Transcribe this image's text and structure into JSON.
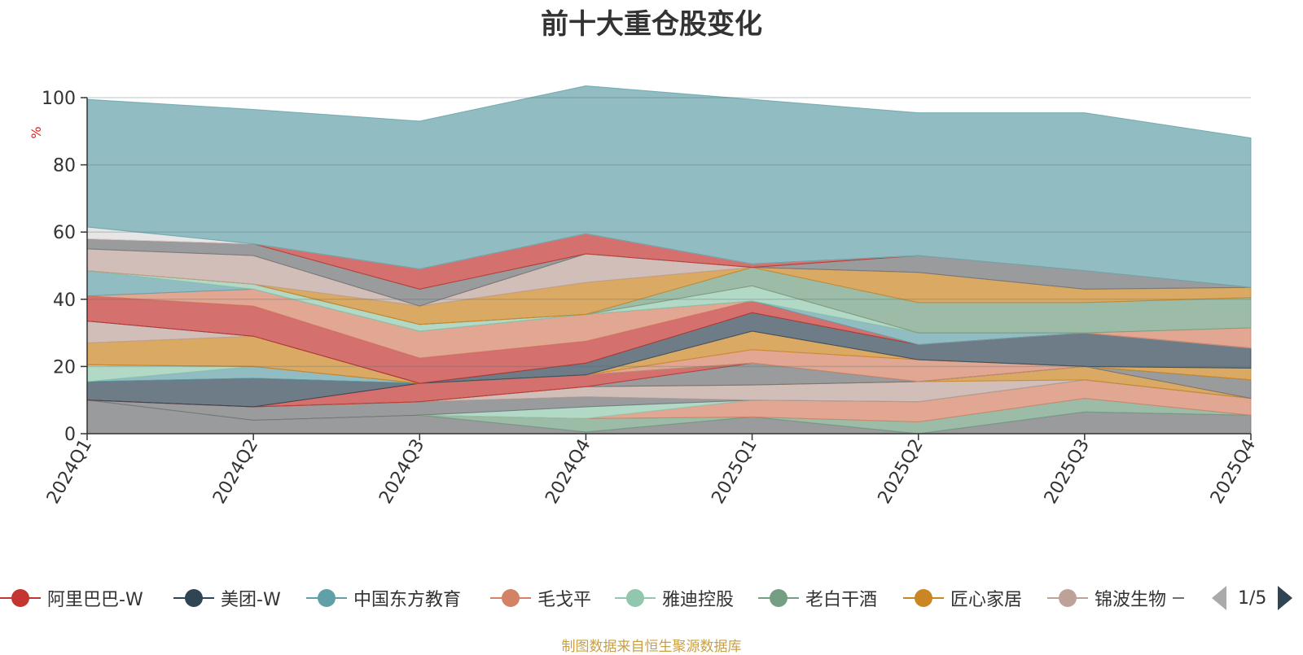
{
  "title": "前十大重仓股变化",
  "footer": "制图数据来自恒生聚源数据库",
  "pager": {
    "page": "1/5"
  },
  "legend_items": [
    {
      "label": "阿里巴巴-W",
      "color": "#c23531"
    },
    {
      "label": "美团-W",
      "color": "#2f4554"
    },
    {
      "label": "中国东方教育",
      "color": "#61a0a8"
    },
    {
      "label": "毛戈平",
      "color": "#d48265"
    },
    {
      "label": "雅迪控股",
      "color": "#91c7ae"
    },
    {
      "label": "老白干酒",
      "color": "#749f83"
    },
    {
      "label": "匠心家居",
      "color": "#ca8622"
    },
    {
      "label": "锦波生物",
      "color": "#bda29a"
    }
  ],
  "chart_data": {
    "type": "area",
    "stacked": true,
    "title": "前十大重仓股变化",
    "ylabel": "%",
    "xlabel": "",
    "ylim": [
      0,
      100
    ],
    "yticks": [
      0,
      20,
      40,
      60,
      80,
      100
    ],
    "grid": true,
    "legend_position": "bottom",
    "categories": [
      "2024Q1",
      "2024Q2",
      "2024Q3",
      "2024Q4",
      "2025Q1",
      "2025Q2",
      "2025Q3",
      "2025Q4"
    ],
    "series": [
      {
        "color": "#6e7074",
        "values": [
          10,
          4,
          5.5,
          0.5,
          5,
          0,
          6.5,
          5.5
        ]
      },
      {
        "color": "#749f83",
        "values": [
          0,
          0,
          0,
          4,
          0,
          3.5,
          4,
          0
        ]
      },
      {
        "color": "#d48265",
        "values": [
          0,
          0,
          0,
          0,
          5,
          6,
          5.5,
          5
        ]
      },
      {
        "color": "#91c7ae",
        "values": [
          0,
          0,
          0,
          3.5,
          0,
          0,
          0,
          0
        ]
      },
      {
        "color": "#6e7074",
        "values": [
          0,
          4,
          4,
          3,
          0,
          0,
          0,
          0
        ]
      },
      {
        "color": "#bda29a",
        "values": [
          0,
          0,
          0,
          3,
          4.5,
          6,
          0,
          0
        ]
      },
      {
        "color": "#ca8622",
        "values": [
          0,
          0,
          0,
          0,
          0,
          0,
          4,
          0
        ]
      },
      {
        "color": "#6e7074",
        "values": [
          0,
          0,
          0,
          0,
          6.5,
          0,
          0,
          5.5
        ]
      },
      {
        "color": "#c23531",
        "values": [
          0,
          0,
          5.5,
          3.5,
          0,
          0,
          0,
          0
        ]
      },
      {
        "color": "#2f4554",
        "values": [
          5.5,
          8.5,
          0,
          0,
          0,
          0,
          0,
          0
        ]
      },
      {
        "color": "#61a0a8",
        "values": [
          0,
          3.5,
          0,
          0,
          0,
          0,
          0,
          0
        ]
      },
      {
        "color": "#91c7ae",
        "values": [
          5,
          0,
          0,
          0,
          0,
          0,
          0,
          0
        ]
      },
      {
        "color": "#61a0a8",
        "values": [
          0,
          0,
          0,
          0,
          0,
          0,
          0,
          0
        ]
      },
      {
        "color": "#d48265",
        "values": [
          0,
          0,
          0,
          0,
          4,
          6.5,
          0,
          0
        ]
      },
      {
        "color": "#ca8622",
        "values": [
          6.5,
          9,
          0,
          0,
          5.5,
          0,
          0,
          3.5
        ]
      },
      {
        "color": "#bda29a",
        "values": [
          6.5,
          0,
          0,
          0,
          0,
          0,
          0,
          0
        ]
      },
      {
        "color": "#2f4554",
        "values": [
          0,
          0,
          0,
          3.5,
          5.5,
          4.5,
          10,
          6
        ]
      },
      {
        "color": "#c23531",
        "values": [
          7.5,
          9,
          7.5,
          6.5,
          3.5,
          0,
          0,
          0
        ]
      },
      {
        "color": "#d48265",
        "values": [
          0,
          5,
          8,
          8,
          0,
          0,
          0,
          0
        ]
      },
      {
        "color": "#61a0a8",
        "values": [
          7.5,
          0,
          0,
          0,
          0,
          3.5,
          0,
          0
        ]
      },
      {
        "color": "#91c7ae",
        "values": [
          0,
          1.5,
          2,
          0,
          4.5,
          0,
          0,
          0
        ]
      },
      {
        "color": "#d48265",
        "values": [
          0,
          0,
          0,
          0,
          0,
          0,
          0,
          6
        ]
      },
      {
        "color": "#749f83",
        "values": [
          0,
          0,
          0,
          0,
          5.5,
          9,
          9,
          9
        ]
      },
      {
        "color": "#ca8622",
        "values": [
          0,
          0,
          5.5,
          9.5,
          0,
          9,
          4,
          3
        ]
      },
      {
        "color": "#bda29a",
        "values": [
          6.5,
          8.5,
          0,
          8.5,
          0,
          0,
          0,
          0
        ]
      },
      {
        "color": "#6e7074",
        "values": [
          3,
          3.5,
          5,
          0,
          0,
          5,
          5.5,
          0
        ]
      },
      {
        "color": "#c23531",
        "values": [
          0,
          0,
          6,
          6,
          1,
          0,
          0,
          0
        ]
      },
      {
        "color": "#dcdcdc",
        "values": [
          3.5,
          0,
          0,
          0,
          0,
          0,
          0,
          0
        ]
      },
      {
        "color": "#61a0a8",
        "values": [
          38,
          40,
          44,
          44,
          49,
          42.5,
          47,
          44.5
        ]
      }
    ]
  }
}
